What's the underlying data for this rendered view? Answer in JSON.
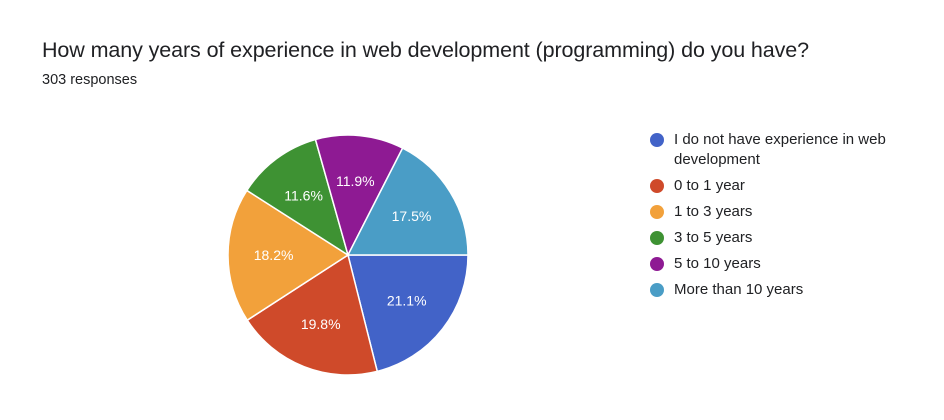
{
  "chart_data": {
    "type": "pie",
    "title": "How many years of experience in web development (programming) do you have?",
    "subtitle": "303 responses",
    "legend_position": "right",
    "slices": [
      {
        "label": "I do not have experience in web development",
        "value": 21.1,
        "value_label": "21.1%",
        "color": "#4263c8"
      },
      {
        "label": "0 to 1 year",
        "value": 19.8,
        "value_label": "19.8%",
        "color": "#cf4a2a"
      },
      {
        "label": "1 to 3 years",
        "value": 18.2,
        "value_label": "18.2%",
        "color": "#f2a13b"
      },
      {
        "label": "3 to 5 years",
        "value": 11.6,
        "value_label": "11.6%",
        "color": "#3e9233"
      },
      {
        "label": "5 to 10 years",
        "value": 11.9,
        "value_label": "11.9%",
        "color": "#8e1a93"
      },
      {
        "label": "More than 10 years",
        "value": 17.5,
        "value_label": "17.5%",
        "color": "#4a9dc6"
      }
    ]
  }
}
